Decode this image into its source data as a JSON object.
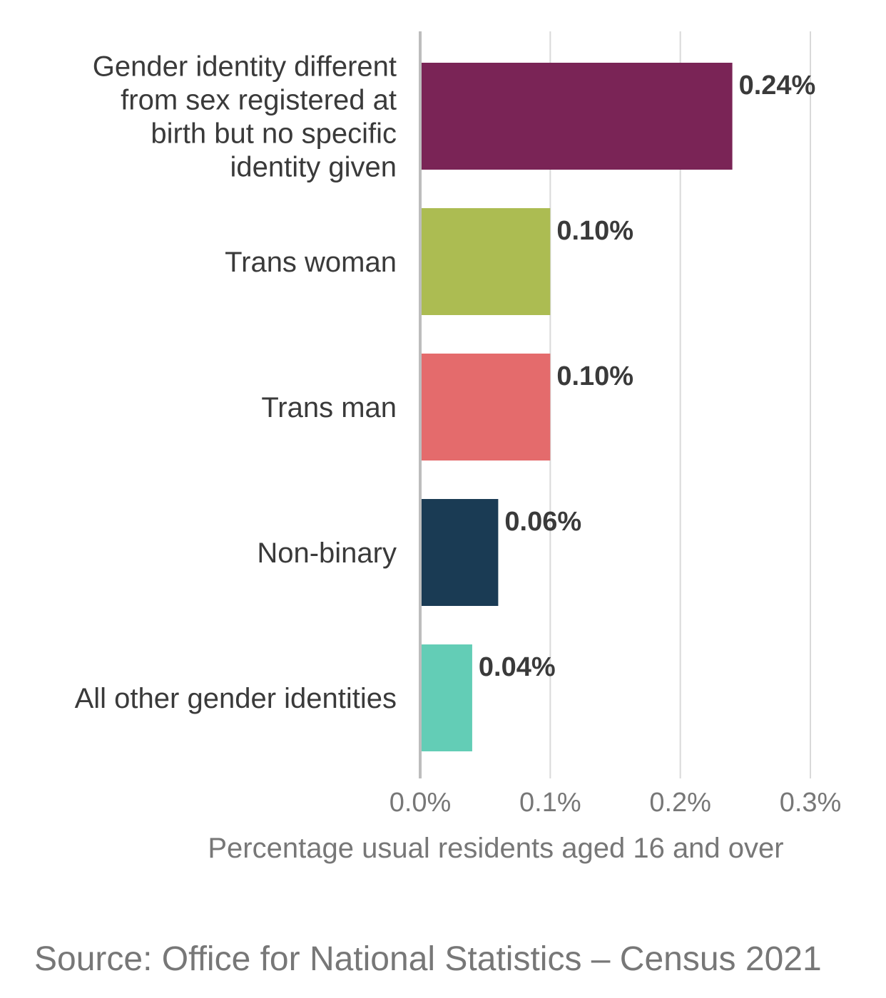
{
  "chart_data": {
    "type": "bar",
    "orientation": "horizontal",
    "categories": [
      "Gender identity different from sex registered at birth but no specific identity given",
      "Trans woman",
      "Trans man",
      "Non-binary",
      "All other gender identities"
    ],
    "category_label_lines": [
      [
        "Gender identity different",
        "from sex registered at",
        "birth but no specific",
        "identity given"
      ],
      [
        "Trans woman"
      ],
      [
        "Trans man"
      ],
      [
        "Non-binary"
      ],
      [
        "All other gender identities"
      ]
    ],
    "values": [
      0.24,
      0.1,
      0.1,
      0.06,
      0.04
    ],
    "value_labels": [
      "0.24%",
      "0.10%",
      "0.10%",
      "0.06%",
      "0.04%"
    ],
    "bar_colors": [
      "#7a2456",
      "#acbc52",
      "#e46b6c",
      "#1a3b54",
      "#63cdb6"
    ],
    "xlim": [
      0,
      0.3
    ],
    "xticks": [
      0,
      0.1,
      0.2,
      0.3
    ],
    "xtick_labels": [
      "0.0%",
      "0.1%",
      "0.2%",
      "0.3%"
    ],
    "xlabel": "Percentage usual residents aged 16 and over",
    "ylabel": "",
    "grid": "vertical gridlines",
    "legend": "none"
  },
  "source": "Source: Office for National Statistics – Census 2021",
  "colors": {
    "grid": "#d9d9d9",
    "axis": "#bdbdbd",
    "label_text": "#3a3a3a",
    "muted_text": "#777777"
  }
}
